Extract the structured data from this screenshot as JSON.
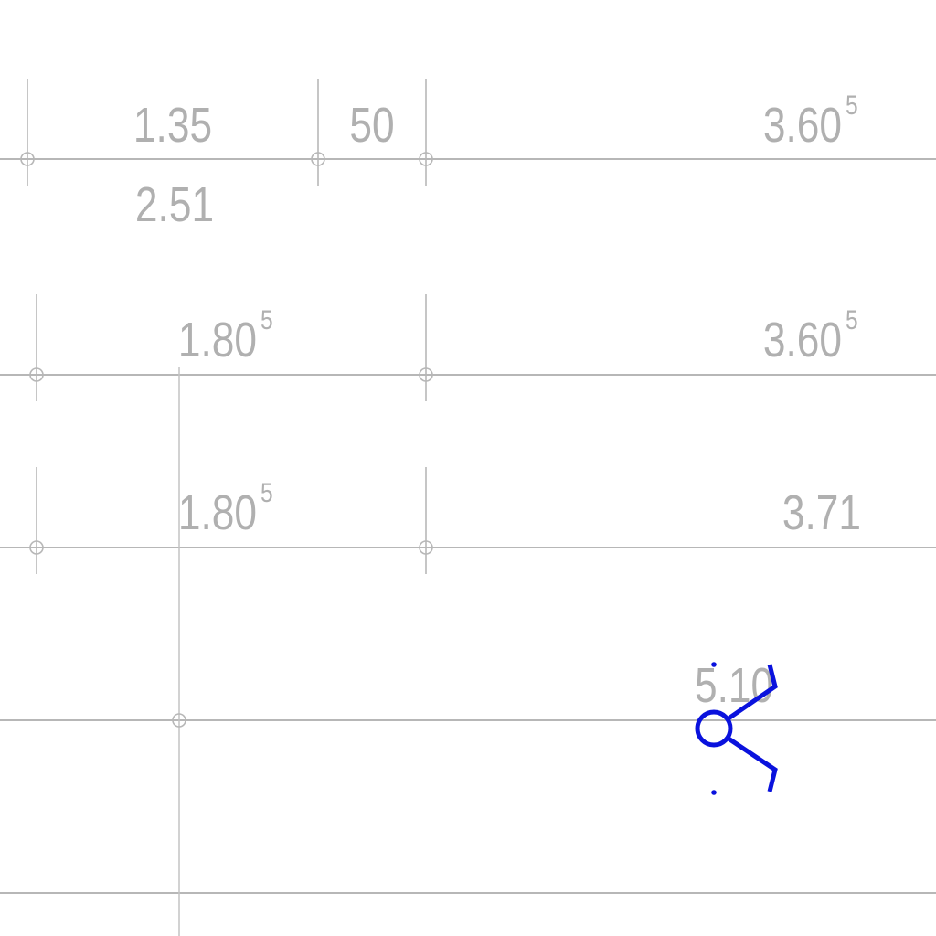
{
  "dimensions": {
    "row1_seg1": "1.35",
    "row1_seg2": "50",
    "row1_seg3_main": "3.60",
    "row1_seg3_sup": "5",
    "row1_below": "2.51",
    "row2_seg1_main": "1.80",
    "row2_seg1_sup": "5",
    "row2_seg2_main": "3.60",
    "row2_seg2_sup": "5",
    "row3_seg1_main": "1.80",
    "row3_seg1_sup": "5",
    "row3_seg2": "3.71",
    "row4_label": "5.10"
  },
  "colors": {
    "dimension_gray": "#b0b0b0",
    "symbol_blue": "#0a12dd"
  },
  "symbols": [
    "dimension-tick-circle",
    "blue-elevation-marker"
  ]
}
